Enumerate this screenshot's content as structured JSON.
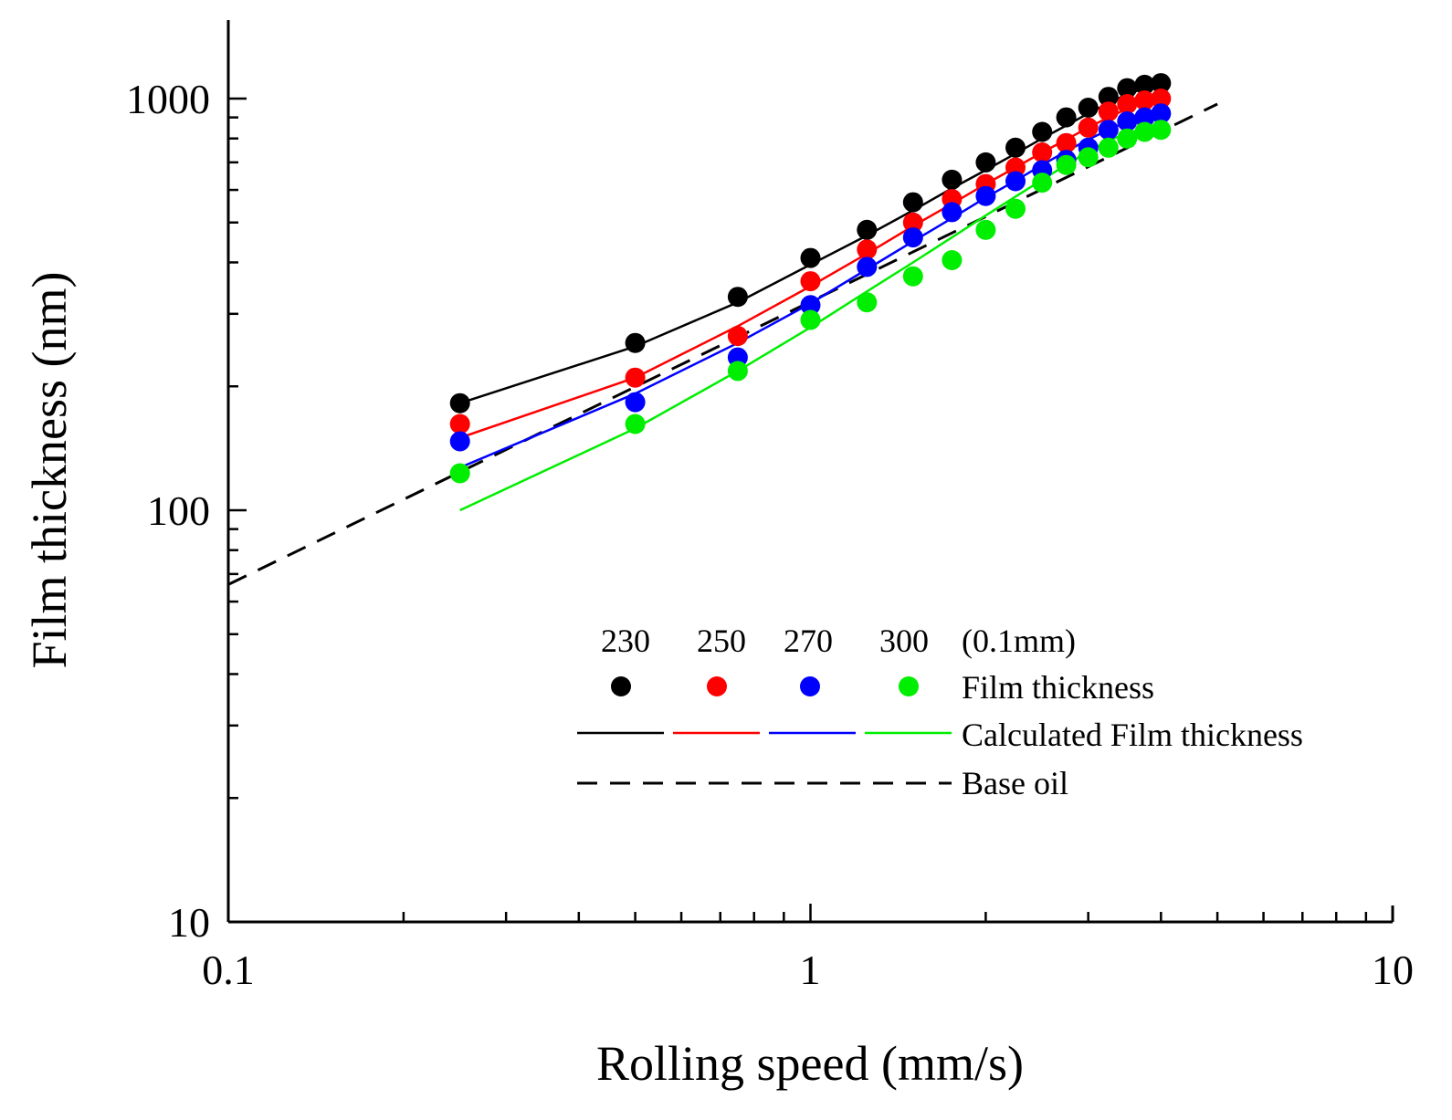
{
  "chart_data": {
    "type": "scatter",
    "title": "",
    "xlabel": "Rolling speed (mm/s)",
    "ylabel": "Film thickness (nm)",
    "xscale": "log",
    "yscale": "log",
    "xlim": [
      0.1,
      10
    ],
    "ylim": [
      10,
      1500
    ],
    "x_ticks": [
      {
        "value": 0.1,
        "label": "0.1"
      },
      {
        "value": 1,
        "label": "1"
      },
      {
        "value": 10,
        "label": "10"
      }
    ],
    "y_ticks": [
      {
        "value": 10,
        "label": "10"
      },
      {
        "value": 100,
        "label": "100"
      },
      {
        "value": 1000,
        "label": "1000"
      }
    ],
    "legend": {
      "position": "center-right",
      "unit": "(0.1mm)",
      "measured_label": "Film thickness",
      "calculated_label": "Calculated Film thickness",
      "base_label": "Base oil"
    },
    "series": [
      {
        "name": "230",
        "color": "#000000",
        "measured": {
          "x": [
            0.25,
            0.5,
            0.75,
            1.0,
            1.25,
            1.5,
            1.75,
            2.0,
            2.25,
            2.5,
            2.75,
            3.0,
            3.25,
            3.5,
            3.75,
            4.0
          ],
          "y": [
            182,
            255,
            330,
            410,
            480,
            560,
            635,
            700,
            760,
            830,
            900,
            950,
            1010,
            1060,
            1080,
            1090
          ]
        },
        "calculated": {
          "x": [
            0.25,
            0.5,
            0.75,
            1.0,
            1.25,
            1.5,
            1.75,
            2.0,
            2.25,
            2.5,
            2.75,
            3.0,
            3.25,
            3.5,
            3.75,
            4.0
          ],
          "y": [
            182,
            250,
            320,
            395,
            465,
            535,
            605,
            670,
            735,
            800,
            860,
            920,
            975,
            1025,
            1060,
            1090
          ]
        }
      },
      {
        "name": "250",
        "color": "#ff0000",
        "measured": {
          "x": [
            0.25,
            0.5,
            0.75,
            1.0,
            1.25,
            1.5,
            1.75,
            2.0,
            2.25,
            2.5,
            2.75,
            3.0,
            3.25,
            3.5,
            3.75,
            4.0
          ],
          "y": [
            162,
            210,
            265,
            360,
            430,
            500,
            570,
            620,
            680,
            740,
            780,
            850,
            930,
            970,
            990,
            1000
          ]
        },
        "calculated": {
          "x": [
            0.25,
            0.5,
            0.75,
            1.0,
            1.25,
            1.5,
            1.75,
            2.0,
            2.25,
            2.5,
            2.75,
            3.0,
            3.25,
            3.5,
            3.75,
            4.0
          ],
          "y": [
            150,
            210,
            280,
            350,
            420,
            490,
            555,
            620,
            680,
            740,
            795,
            850,
            900,
            945,
            980,
            1000
          ]
        }
      },
      {
        "name": "270",
        "color": "#0000ff",
        "measured": {
          "x": [
            0.25,
            0.5,
            0.75,
            1.0,
            1.25,
            1.5,
            1.75,
            2.0,
            2.25,
            2.5,
            2.75,
            3.0,
            3.25,
            3.5,
            3.75,
            4.0
          ],
          "y": [
            147,
            183,
            235,
            315,
            390,
            460,
            530,
            580,
            630,
            670,
            710,
            760,
            840,
            880,
            900,
            920
          ]
        },
        "calculated": {
          "x": [
            0.25,
            0.5,
            0.75,
            1.0,
            1.25,
            1.5,
            1.75,
            2.0,
            2.25,
            2.5,
            2.75,
            3.0,
            3.25,
            3.5,
            3.75,
            4.0
          ],
          "y": [
            127,
            192,
            255,
            318,
            385,
            450,
            512,
            575,
            632,
            690,
            745,
            795,
            840,
            880,
            910,
            930
          ]
        }
      },
      {
        "name": "300",
        "color": "#00ee00",
        "measured": {
          "x": [
            0.25,
            0.5,
            0.75,
            1.0,
            1.25,
            1.5,
            1.75,
            2.0,
            2.25,
            2.5,
            2.75,
            3.0,
            3.25,
            3.5,
            3.75,
            4.0
          ],
          "y": [
            123,
            162,
            218,
            290,
            320,
            370,
            405,
            480,
            540,
            625,
            690,
            720,
            760,
            800,
            830,
            840
          ]
        },
        "calculated": {
          "x": [
            0.25,
            0.5,
            0.75,
            1.0,
            1.25,
            1.5,
            1.75,
            2.0,
            2.25,
            2.5,
            2.75,
            3.0,
            3.25,
            3.5,
            3.75,
            4.0
          ],
          "y": [
            100,
            158,
            218,
            278,
            340,
            400,
            460,
            520,
            578,
            635,
            690,
            745,
            790,
            825,
            845,
            860
          ]
        }
      }
    ],
    "base_oil": {
      "name": "Base oil",
      "color": "#000000",
      "style": "dashed",
      "x": [
        0.1,
        5.0
      ],
      "y": [
        66,
        970
      ]
    }
  }
}
